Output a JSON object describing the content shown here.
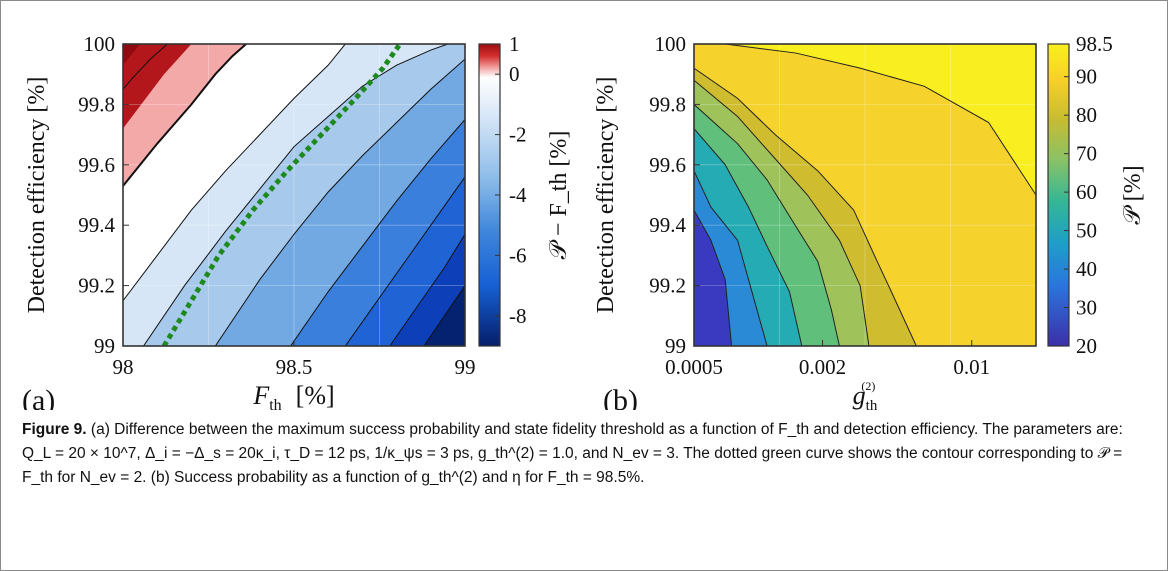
{
  "figure_label": "Figure 9.",
  "caption": "(a) Difference between the maximum success probability and state fidelity threshold as a function of F_th and detection efficiency. The parameters are: Q_L = 20 × 10^7, Δ_i = −Δ_s = 20κ_i, τ_D = 12 ps, 1/κ_ψs = 3 ps, g_th^(2) = 1.0, and N_ev = 3. The dotted green curve shows the contour corresponding to 𝒫 = F_th for N_ev = 2. (b) Success probability as a function of g_th^(2) and η for F_th = 98.5%.",
  "chart_data": [
    {
      "type": "contour",
      "panel_label": "(a)",
      "xlabel": "F_th [%]",
      "ylabel": "Detection efficiency [%]",
      "colorbar_label": "𝒫 − F_th [%]",
      "x_ticks": [
        "98",
        "98.5",
        "99"
      ],
      "y_ticks": [
        "99",
        "99.2",
        "99.4",
        "99.6",
        "99.8",
        "100"
      ],
      "colorbar_ticks": [
        "1",
        "0",
        "-2",
        "-4",
        "-6",
        "-8"
      ],
      "xlim": [
        98,
        99
      ],
      "ylim": [
        99,
        100
      ],
      "clim": [
        -9,
        1
      ],
      "grid": true,
      "contour_boundaries": [
        {
          "level": 0.5,
          "points": [
            [
              98.0,
              99.85
            ],
            [
              98.03,
              99.89
            ],
            [
              98.08,
              99.95
            ],
            [
              98.13,
              100.0
            ]
          ]
        },
        {
          "level": 0.0,
          "points": [
            [
              98.0,
              99.53
            ],
            [
              98.1,
              99.67
            ],
            [
              98.2,
              99.8
            ],
            [
              98.27,
              99.9
            ],
            [
              98.32,
              99.96
            ],
            [
              98.36,
              100.0
            ]
          ]
        },
        {
          "level": -0.5,
          "points": [
            [
              98.0,
              99.15
            ],
            [
              98.1,
              99.3
            ],
            [
              98.2,
              99.45
            ],
            [
              98.3,
              99.58
            ],
            [
              98.4,
              99.7
            ],
            [
              98.5,
              99.82
            ],
            [
              98.6,
              99.93
            ],
            [
              98.65,
              100.0
            ]
          ]
        },
        {
          "level": -1.0,
          "points": [
            [
              98.06,
              99.0
            ],
            [
              98.18,
              99.2
            ],
            [
              98.3,
              99.38
            ],
            [
              98.4,
              99.52
            ],
            [
              98.5,
              99.66
            ],
            [
              98.6,
              99.76
            ],
            [
              98.7,
              99.86
            ],
            [
              98.8,
              99.93
            ],
            [
              98.9,
              99.98
            ],
            [
              98.95,
              100.0
            ]
          ]
        },
        {
          "level": -2.0,
          "points": [
            [
              98.27,
              99.0
            ],
            [
              98.4,
              99.22
            ],
            [
              98.5,
              99.37
            ],
            [
              98.6,
              99.51
            ],
            [
              98.7,
              99.63
            ],
            [
              98.8,
              99.74
            ],
            [
              98.9,
              99.85
            ],
            [
              99.0,
              99.95
            ]
          ]
        },
        {
          "level": -3.0,
          "points": [
            [
              98.49,
              99.0
            ],
            [
              98.6,
              99.18
            ],
            [
              98.7,
              99.33
            ],
            [
              98.8,
              99.48
            ],
            [
              98.9,
              99.62
            ],
            [
              99.0,
              99.75
            ]
          ]
        },
        {
          "level": -4.0,
          "points": [
            [
              98.65,
              99.0
            ],
            [
              98.75,
              99.16
            ],
            [
              98.85,
              99.32
            ],
            [
              98.95,
              99.48
            ],
            [
              99.0,
              99.56
            ]
          ]
        },
        {
          "level": -5.0,
          "points": [
            [
              98.78,
              99.0
            ],
            [
              98.86,
              99.13
            ],
            [
              98.94,
              99.26
            ],
            [
              99.0,
              99.37
            ]
          ]
        },
        {
          "level": -6.0,
          "points": [
            [
              98.88,
              99.0
            ],
            [
              98.94,
              99.1
            ],
            [
              99.0,
              99.2
            ]
          ]
        }
      ],
      "contour_line_levels": [
        0.5,
        0.0,
        -1.0,
        -2.0,
        -3.0,
        -4.0,
        -5.0,
        -6.0
      ],
      "dotted_curve": {
        "name": "𝒫 = F_th for N_ev = 2",
        "color": "#1e8a1e",
        "points": [
          [
            98.12,
            99.0
          ],
          [
            98.2,
            99.15
          ],
          [
            98.28,
            99.3
          ],
          [
            98.38,
            99.45
          ],
          [
            98.48,
            99.58
          ],
          [
            98.58,
            99.7
          ],
          [
            98.68,
            99.82
          ],
          [
            98.76,
            99.92
          ],
          [
            98.81,
            100.0
          ]
        ]
      },
      "region_colors": [
        "#9c0d12",
        "#ba1a1e",
        "#d42f2f",
        "#e55252",
        "#ef7f7f",
        "#f6b0b0",
        "#ffffff",
        "#e8f0fa",
        "#cadff3",
        "#a5c8ec",
        "#78aee3",
        "#4c8edb",
        "#246ed7",
        "#0e4fc4",
        "#04226f"
      ]
    },
    {
      "type": "contour",
      "panel_label": "(b)",
      "xlabel": "g_th^(2)",
      "ylabel": "Detection efficiency [%]",
      "colorbar_label": "𝒫 [%]",
      "x_scale": "log",
      "x_ticks": [
        "0.0005",
        "0.002",
        "0.01"
      ],
      "y_ticks": [
        "99",
        "99.2",
        "99.4",
        "99.6",
        "99.8",
        "100"
      ],
      "colorbar_ticks": [
        "98.5",
        "90",
        "80",
        "70",
        "60",
        "50",
        "40",
        "30",
        "20"
      ],
      "xlim": [
        0.0005,
        0.02
      ],
      "ylim": [
        99,
        100
      ],
      "clim": [
        20,
        98.5
      ],
      "grid": true,
      "contour_boundaries": [
        {
          "level": 95,
          "points": [
            [
              0.0007,
              100.0
            ],
            [
              0.0015,
              99.97
            ],
            [
              0.003,
              99.92
            ],
            [
              0.006,
              99.86
            ],
            [
              0.012,
              99.74
            ],
            [
              0.02,
              99.5
            ]
          ]
        },
        {
          "level": 90,
          "points": [
            [
              0.0005,
              99.92
            ],
            [
              0.0008,
              99.82
            ],
            [
              0.0012,
              99.7
            ],
            [
              0.0019,
              99.58
            ],
            [
              0.0028,
              99.45
            ],
            [
              0.0035,
              99.3
            ],
            [
              0.0042,
              99.18
            ],
            [
              0.0055,
              99.0
            ]
          ]
        },
        {
          "level": 85,
          "points": [
            [
              0.0005,
              99.88
            ],
            [
              0.0008,
              99.76
            ],
            [
              0.0012,
              99.62
            ],
            [
              0.0017,
              99.5
            ],
            [
              0.0024,
              99.35
            ],
            [
              0.003,
              99.2
            ],
            [
              0.0033,
              99.0
            ]
          ]
        },
        {
          "level": 75,
          "points": [
            [
              0.0005,
              99.8
            ],
            [
              0.0008,
              99.67
            ],
            [
              0.0011,
              99.55
            ],
            [
              0.0014,
              99.43
            ],
            [
              0.0019,
              99.28
            ],
            [
              0.0022,
              99.12
            ],
            [
              0.0024,
              99.0
            ]
          ]
        },
        {
          "level": 65,
          "points": [
            [
              0.0005,
              99.72
            ],
            [
              0.0007,
              99.6
            ],
            [
              0.0009,
              99.46
            ],
            [
              0.0011,
              99.33
            ],
            [
              0.0014,
              99.18
            ],
            [
              0.0016,
              99.0
            ]
          ]
        },
        {
          "level": 55,
          "points": [
            [
              0.0005,
              99.58
            ],
            [
              0.0006,
              99.46
            ],
            [
              0.0008,
              99.35
            ],
            [
              0.0009,
              99.22
            ],
            [
              0.0011,
              99.0
            ]
          ]
        },
        {
          "level": 45,
          "points": [
            [
              0.0005,
              99.45
            ],
            [
              0.0006,
              99.35
            ],
            [
              0.0007,
              99.22
            ],
            [
              0.00075,
              99.0
            ]
          ]
        }
      ],
      "region_colors": [
        "#f8e920",
        "#f6d02c",
        "#cdbb2e",
        "#84c26a",
        "#41b98a",
        "#22a7c0",
        "#2a8ad6",
        "#3468e0",
        "#3a3ac0"
      ]
    }
  ]
}
